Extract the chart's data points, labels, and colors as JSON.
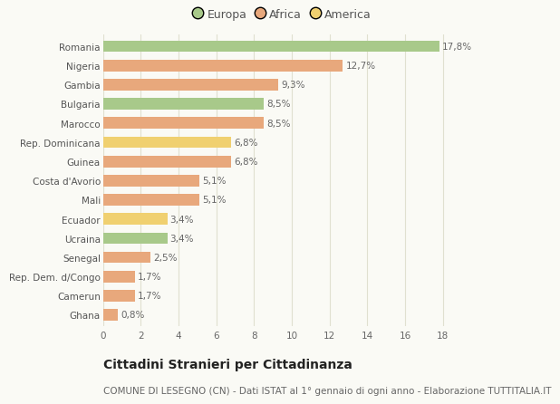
{
  "categories": [
    "Romania",
    "Nigeria",
    "Gambia",
    "Bulgaria",
    "Marocco",
    "Rep. Dominicana",
    "Guinea",
    "Costa d'Avorio",
    "Mali",
    "Ecuador",
    "Ucraina",
    "Senegal",
    "Rep. Dem. d/Congo",
    "Camerun",
    "Ghana"
  ],
  "values": [
    17.8,
    12.7,
    9.3,
    8.5,
    8.5,
    6.8,
    6.8,
    5.1,
    5.1,
    3.4,
    3.4,
    2.5,
    1.7,
    1.7,
    0.8
  ],
  "labels": [
    "17,8%",
    "12,7%",
    "9,3%",
    "8,5%",
    "8,5%",
    "6,8%",
    "6,8%",
    "5,1%",
    "5,1%",
    "3,4%",
    "3,4%",
    "2,5%",
    "1,7%",
    "1,7%",
    "0,8%"
  ],
  "continent": [
    "Europa",
    "Africa",
    "Africa",
    "Europa",
    "Africa",
    "America",
    "Africa",
    "Africa",
    "Africa",
    "America",
    "Europa",
    "Africa",
    "Africa",
    "Africa",
    "Africa"
  ],
  "colors": {
    "Europa": "#a8c98a",
    "Africa": "#e8a87c",
    "America": "#f0d070"
  },
  "title": "Cittadini Stranieri per Cittadinanza",
  "subtitle": "COMUNE DI LESEGNO (CN) - Dati ISTAT al 1° gennaio di ogni anno - Elaborazione TUTTITALIA.IT",
  "xlim": [
    0,
    19
  ],
  "xticks": [
    0,
    2,
    4,
    6,
    8,
    10,
    12,
    14,
    16,
    18
  ],
  "background_color": "#fafaf5",
  "grid_color": "#e0e0d0",
  "bar_height": 0.6,
  "title_fontsize": 10,
  "subtitle_fontsize": 7.5,
  "label_fontsize": 7.5,
  "tick_fontsize": 7.5,
  "legend_fontsize": 9
}
